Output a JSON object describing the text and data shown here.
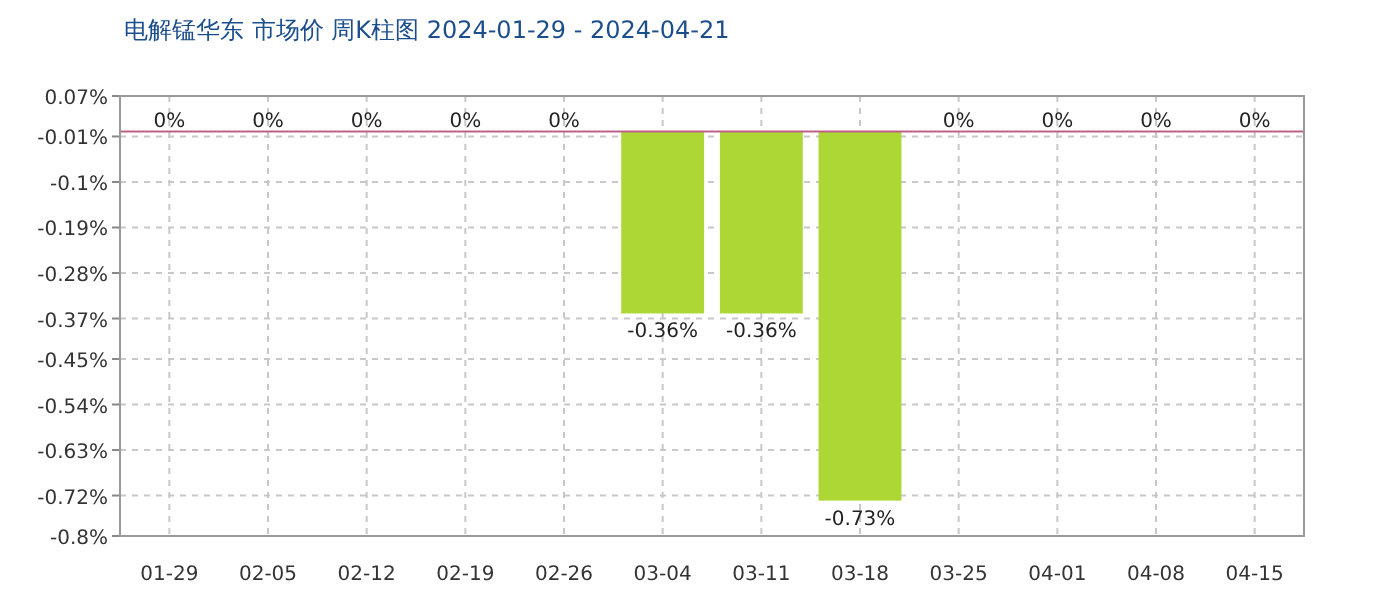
{
  "chart_data": {
    "type": "bar",
    "title": "电解锰华东  市场价  周K柱图  2024-01-29 - 2024-04-21",
    "categories": [
      "01-29",
      "02-05",
      "02-12",
      "02-19",
      "02-26",
      "03-04",
      "03-11",
      "03-18",
      "03-25",
      "04-01",
      "04-08",
      "04-15"
    ],
    "values": [
      0,
      0,
      0,
      0,
      0,
      -0.36,
      -0.36,
      -0.73,
      0,
      0,
      0,
      0
    ],
    "value_labels": [
      "0%",
      "0%",
      "0%",
      "0%",
      "0%",
      "-0.36%",
      "-0.36%",
      "-0.73%",
      "0%",
      "0%",
      "0%",
      "0%"
    ],
    "color": "#acd734",
    "ylim": [
      -0.8,
      0.07
    ],
    "yticks": [
      {
        "value": 0.07,
        "label": "0.07%"
      },
      {
        "value": -0.01,
        "label": "-0.01%"
      },
      {
        "value": -0.1,
        "label": "-0.1%"
      },
      {
        "value": -0.19,
        "label": "-0.19%"
      },
      {
        "value": -0.28,
        "label": "-0.28%"
      },
      {
        "value": -0.37,
        "label": "-0.37%"
      },
      {
        "value": -0.45,
        "label": "-0.45%"
      },
      {
        "value": -0.54,
        "label": "-0.54%"
      },
      {
        "value": -0.63,
        "label": "-0.63%"
      },
      {
        "value": -0.72,
        "label": "-0.72%"
      },
      {
        "value": -0.8,
        "label": "-0.8%"
      }
    ],
    "grid": true,
    "ref_lines": [
      {
        "axis": "y",
        "value": 0,
        "color": "#c06088"
      }
    ]
  }
}
